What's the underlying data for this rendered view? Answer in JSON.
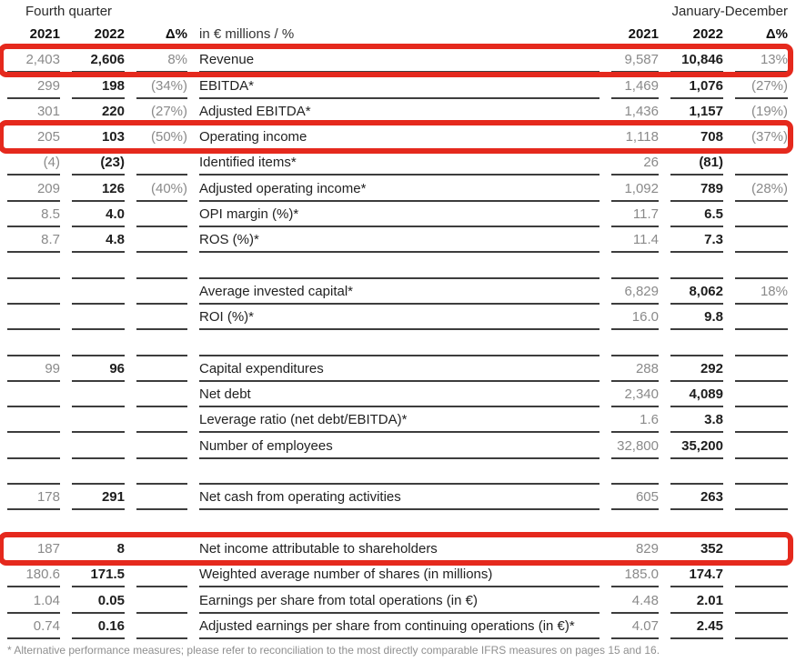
{
  "header": {
    "left_period": "Fourth quarter",
    "right_period": "January-December",
    "fq_col_2021": "2021",
    "fq_col_2022": "2022",
    "fq_col_delta": "Δ%",
    "unit_label": "in € millions / %",
    "jd_col_2021": "2021",
    "jd_col_2022": "2022",
    "jd_col_delta": "Δ%"
  },
  "colors": {
    "highlight_red": "#e5291d",
    "line": "#3d3d3d",
    "muted_text": "#8a8a8a",
    "strong_text": "#1d1d1d"
  },
  "table": {
    "rows": [
      {
        "fq2021": "2,403",
        "fq2022": "2,606",
        "fq_delta": "8%",
        "label": "Revenue",
        "jd2021": "9,587",
        "jd2022": "10,846",
        "jd_delta": "13%",
        "highlight": true
      },
      {
        "fq2021": "299",
        "fq2022": "198",
        "fq_delta": "(34%)",
        "label": "EBITDA*",
        "jd2021": "1,469",
        "jd2022": "1,076",
        "jd_delta": "(27%)",
        "highlight": false
      },
      {
        "fq2021": "301",
        "fq2022": "220",
        "fq_delta": "(27%)",
        "label": "Adjusted EBITDA*",
        "jd2021": "1,436",
        "jd2022": "1,157",
        "jd_delta": "(19%)",
        "highlight": false
      },
      {
        "fq2021": "205",
        "fq2022": "103",
        "fq_delta": "(50%)",
        "label": "Operating income",
        "jd2021": "1,118",
        "jd2022": "708",
        "jd_delta": "(37%)",
        "highlight": true
      },
      {
        "fq2021": "(4)",
        "fq2022": "(23)",
        "fq_delta": "",
        "label": "Identified items*",
        "jd2021": "26",
        "jd2022": "(81)",
        "jd_delta": "",
        "highlight": false
      },
      {
        "fq2021": "209",
        "fq2022": "126",
        "fq_delta": "(40%)",
        "label": "Adjusted operating income*",
        "jd2021": "1,092",
        "jd2022": "789",
        "jd_delta": "(28%)",
        "highlight": false
      },
      {
        "fq2021": "8.5",
        "fq2022": "4.0",
        "fq_delta": "",
        "label": "OPI margin (%)*",
        "jd2021": "11.7",
        "jd2022": "6.5",
        "jd_delta": "",
        "highlight": false
      },
      {
        "fq2021": "8.7",
        "fq2022": "4.8",
        "fq_delta": "",
        "label": "ROS (%)*",
        "jd2021": "11.4",
        "jd2022": "7.3",
        "jd_delta": "",
        "highlight": false
      },
      {
        "fq2021": "",
        "fq2022": "",
        "fq_delta": "",
        "label": "",
        "jd2021": "",
        "jd2022": "",
        "jd_delta": "",
        "highlight": false
      },
      {
        "fq2021": "",
        "fq2022": "",
        "fq_delta": "",
        "label": "Average invested capital*",
        "jd2021": "6,829",
        "jd2022": "8,062",
        "jd_delta": "18%",
        "highlight": false
      },
      {
        "fq2021": "",
        "fq2022": "",
        "fq_delta": "",
        "label": "ROI (%)*",
        "jd2021": "16.0",
        "jd2022": "9.8",
        "jd_delta": "",
        "highlight": false
      },
      {
        "fq2021": "",
        "fq2022": "",
        "fq_delta": "",
        "label": "",
        "jd2021": "",
        "jd2022": "",
        "jd_delta": "",
        "highlight": false
      },
      {
        "fq2021": "99",
        "fq2022": "96",
        "fq_delta": "",
        "label": "Capital expenditures",
        "jd2021": "288",
        "jd2022": "292",
        "jd_delta": "",
        "highlight": false
      },
      {
        "fq2021": "",
        "fq2022": "",
        "fq_delta": "",
        "label": "Net debt",
        "jd2021": "2,340",
        "jd2022": "4,089",
        "jd_delta": "",
        "highlight": false
      },
      {
        "fq2021": "",
        "fq2022": "",
        "fq_delta": "",
        "label": "Leverage ratio (net debt/EBITDA)*",
        "jd2021": "1.6",
        "jd2022": "3.8",
        "jd_delta": "",
        "highlight": false
      },
      {
        "fq2021": "",
        "fq2022": "",
        "fq_delta": "",
        "label": "Number of employees",
        "jd2021": "32,800",
        "jd2022": "35,200",
        "jd_delta": "",
        "highlight": false
      },
      {
        "fq2021": "",
        "fq2022": "",
        "fq_delta": "",
        "label": "",
        "jd2021": "",
        "jd2022": "",
        "jd_delta": "",
        "highlight": false
      },
      {
        "fq2021": "178",
        "fq2022": "291",
        "fq_delta": "",
        "label": "Net cash from operating activities",
        "jd2021": "605",
        "jd2022": "263",
        "jd_delta": "",
        "highlight": false
      },
      {
        "fq2021": "",
        "fq2022": "",
        "fq_delta": "",
        "label": "",
        "jd2021": "",
        "jd2022": "",
        "jd_delta": "",
        "highlight": false
      },
      {
        "fq2021": "187",
        "fq2022": "8",
        "fq_delta": "",
        "label": "Net income attributable to shareholders",
        "jd2021": "829",
        "jd2022": "352",
        "jd_delta": "",
        "highlight": true
      },
      {
        "fq2021": "180.6",
        "fq2022": "171.5",
        "fq_delta": "",
        "label": "Weighted average number of shares (in millions)",
        "jd2021": "185.0",
        "jd2022": "174.7",
        "jd_delta": "",
        "highlight": false
      },
      {
        "fq2021": "1.04",
        "fq2022": "0.05",
        "fq_delta": "",
        "label": "Earnings per share from total operations (in €)",
        "jd2021": "4.48",
        "jd2022": "2.01",
        "jd_delta": "",
        "highlight": false
      },
      {
        "fq2021": "0.74",
        "fq2022": "0.16",
        "fq_delta": "",
        "label": "Adjusted earnings per share from continuing operations (in €)*",
        "jd2021": "4.07",
        "jd2022": "2.45",
        "jd_delta": "",
        "highlight": false
      }
    ]
  },
  "footnote": "* Alternative performance measures; please refer to reconciliation to the most directly comparable IFRS measures on pages 15 and 16."
}
